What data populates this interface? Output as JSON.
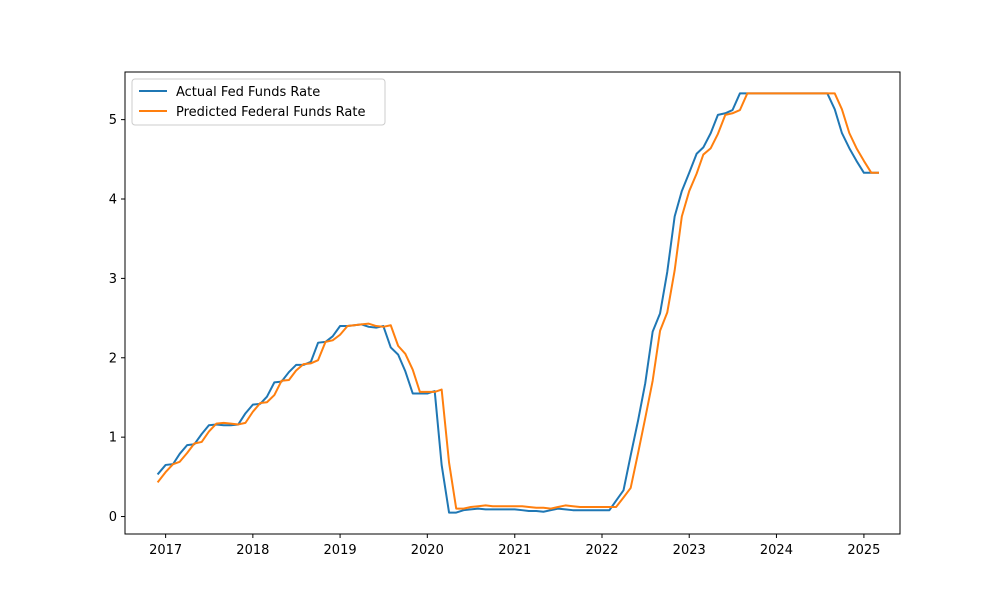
{
  "chart_data": {
    "type": "line",
    "title": "",
    "xlabel": "",
    "ylabel": "",
    "xlim": [
      "2016-07-15",
      "2025-06-01"
    ],
    "ylim": [
      -0.22,
      5.6
    ],
    "x_ticks": [
      "2017",
      "2018",
      "2019",
      "2020",
      "2021",
      "2022",
      "2023",
      "2024",
      "2025"
    ],
    "y_ticks": [
      "0",
      "1",
      "2",
      "3",
      "4",
      "5"
    ],
    "grid": false,
    "legend_position": "top-left",
    "series": [
      {
        "name": "Actual Fed Funds Rate",
        "color": "#1f77b4",
        "points": [
          [
            "2016-12-01",
            0.54
          ],
          [
            "2017-01-01",
            0.65
          ],
          [
            "2017-02-01",
            0.66
          ],
          [
            "2017-03-01",
            0.79
          ],
          [
            "2017-04-01",
            0.9
          ],
          [
            "2017-05-01",
            0.91
          ],
          [
            "2017-06-01",
            1.04
          ],
          [
            "2017-07-01",
            1.15
          ],
          [
            "2017-08-01",
            1.16
          ],
          [
            "2017-09-01",
            1.15
          ],
          [
            "2017-10-01",
            1.15
          ],
          [
            "2017-11-01",
            1.16
          ],
          [
            "2017-12-01",
            1.3
          ],
          [
            "2018-01-01",
            1.41
          ],
          [
            "2018-02-01",
            1.42
          ],
          [
            "2018-03-01",
            1.51
          ],
          [
            "2018-04-01",
            1.69
          ],
          [
            "2018-05-01",
            1.7
          ],
          [
            "2018-06-01",
            1.82
          ],
          [
            "2018-07-01",
            1.91
          ],
          [
            "2018-08-01",
            1.91
          ],
          [
            "2018-09-01",
            1.95
          ],
          [
            "2018-10-01",
            2.19
          ],
          [
            "2018-11-01",
            2.2
          ],
          [
            "2018-12-01",
            2.27
          ],
          [
            "2019-01-01",
            2.4
          ],
          [
            "2019-02-01",
            2.4
          ],
          [
            "2019-03-01",
            2.41
          ],
          [
            "2019-04-01",
            2.42
          ],
          [
            "2019-05-01",
            2.39
          ],
          [
            "2019-06-01",
            2.38
          ],
          [
            "2019-07-01",
            2.4
          ],
          [
            "2019-08-01",
            2.13
          ],
          [
            "2019-09-01",
            2.04
          ],
          [
            "2019-10-01",
            1.83
          ],
          [
            "2019-11-01",
            1.55
          ],
          [
            "2019-12-01",
            1.55
          ],
          [
            "2020-01-01",
            1.55
          ],
          [
            "2020-02-01",
            1.58
          ],
          [
            "2020-03-01",
            0.65
          ],
          [
            "2020-04-01",
            0.05
          ],
          [
            "2020-05-01",
            0.05
          ],
          [
            "2020-06-01",
            0.08
          ],
          [
            "2020-07-01",
            0.09
          ],
          [
            "2020-08-01",
            0.1
          ],
          [
            "2020-09-01",
            0.09
          ],
          [
            "2020-10-01",
            0.09
          ],
          [
            "2020-11-01",
            0.09
          ],
          [
            "2020-12-01",
            0.09
          ],
          [
            "2021-01-01",
            0.09
          ],
          [
            "2021-02-01",
            0.08
          ],
          [
            "2021-03-01",
            0.07
          ],
          [
            "2021-04-01",
            0.07
          ],
          [
            "2021-05-01",
            0.06
          ],
          [
            "2021-06-01",
            0.08
          ],
          [
            "2021-07-01",
            0.1
          ],
          [
            "2021-08-01",
            0.09
          ],
          [
            "2021-09-01",
            0.08
          ],
          [
            "2021-10-01",
            0.08
          ],
          [
            "2021-11-01",
            0.08
          ],
          [
            "2021-12-01",
            0.08
          ],
          [
            "2022-01-01",
            0.08
          ],
          [
            "2022-02-01",
            0.08
          ],
          [
            "2022-03-01",
            0.2
          ],
          [
            "2022-04-01",
            0.33
          ],
          [
            "2022-05-01",
            0.77
          ],
          [
            "2022-06-01",
            1.21
          ],
          [
            "2022-07-01",
            1.68
          ],
          [
            "2022-08-01",
            2.33
          ],
          [
            "2022-09-01",
            2.56
          ],
          [
            "2022-10-01",
            3.08
          ],
          [
            "2022-11-01",
            3.78
          ],
          [
            "2022-12-01",
            4.1
          ],
          [
            "2023-01-01",
            4.33
          ],
          [
            "2023-02-01",
            4.57
          ],
          [
            "2023-03-01",
            4.65
          ],
          [
            "2023-04-01",
            4.83
          ],
          [
            "2023-05-01",
            5.06
          ],
          [
            "2023-06-01",
            5.08
          ],
          [
            "2023-07-01",
            5.12
          ],
          [
            "2023-08-01",
            5.33
          ],
          [
            "2023-09-01",
            5.33
          ],
          [
            "2023-10-01",
            5.33
          ],
          [
            "2023-11-01",
            5.33
          ],
          [
            "2023-12-01",
            5.33
          ],
          [
            "2024-01-01",
            5.33
          ],
          [
            "2024-02-01",
            5.33
          ],
          [
            "2024-03-01",
            5.33
          ],
          [
            "2024-04-01",
            5.33
          ],
          [
            "2024-05-01",
            5.33
          ],
          [
            "2024-06-01",
            5.33
          ],
          [
            "2024-07-01",
            5.33
          ],
          [
            "2024-08-01",
            5.33
          ],
          [
            "2024-09-01",
            5.13
          ],
          [
            "2024-10-01",
            4.83
          ],
          [
            "2024-11-01",
            4.64
          ],
          [
            "2024-12-01",
            4.48
          ],
          [
            "2025-01-01",
            4.33
          ],
          [
            "2025-02-01",
            4.33
          ],
          [
            "2025-03-01",
            4.33
          ]
        ]
      },
      {
        "name": "Predicted Federal Funds Rate",
        "color": "#ff7f0e",
        "points": [
          [
            "2016-12-01",
            0.44
          ],
          [
            "2017-01-01",
            0.56
          ],
          [
            "2017-02-01",
            0.66
          ],
          [
            "2017-03-01",
            0.69
          ],
          [
            "2017-04-01",
            0.8
          ],
          [
            "2017-05-01",
            0.92
          ],
          [
            "2017-06-01",
            0.94
          ],
          [
            "2017-07-01",
            1.07
          ],
          [
            "2017-08-01",
            1.17
          ],
          [
            "2017-09-01",
            1.18
          ],
          [
            "2017-10-01",
            1.17
          ],
          [
            "2017-11-01",
            1.16
          ],
          [
            "2017-12-01",
            1.18
          ],
          [
            "2018-01-01",
            1.32
          ],
          [
            "2018-02-01",
            1.43
          ],
          [
            "2018-03-01",
            1.44
          ],
          [
            "2018-04-01",
            1.53
          ],
          [
            "2018-05-01",
            1.71
          ],
          [
            "2018-06-01",
            1.72
          ],
          [
            "2018-07-01",
            1.84
          ],
          [
            "2018-08-01",
            1.92
          ],
          [
            "2018-09-01",
            1.93
          ],
          [
            "2018-10-01",
            1.97
          ],
          [
            "2018-11-01",
            2.2
          ],
          [
            "2018-12-01",
            2.22
          ],
          [
            "2019-01-01",
            2.29
          ],
          [
            "2019-02-01",
            2.4
          ],
          [
            "2019-03-01",
            2.41
          ],
          [
            "2019-04-01",
            2.42
          ],
          [
            "2019-05-01",
            2.43
          ],
          [
            "2019-06-01",
            2.4
          ],
          [
            "2019-07-01",
            2.39
          ],
          [
            "2019-08-01",
            2.41
          ],
          [
            "2019-09-01",
            2.15
          ],
          [
            "2019-10-01",
            2.05
          ],
          [
            "2019-11-01",
            1.85
          ],
          [
            "2019-12-01",
            1.57
          ],
          [
            "2020-01-01",
            1.57
          ],
          [
            "2020-02-01",
            1.57
          ],
          [
            "2020-03-01",
            1.6
          ],
          [
            "2020-04-01",
            0.68
          ],
          [
            "2020-05-01",
            0.1
          ],
          [
            "2020-06-01",
            0.1
          ],
          [
            "2020-07-01",
            0.12
          ],
          [
            "2020-08-01",
            0.13
          ],
          [
            "2020-09-01",
            0.14
          ],
          [
            "2020-10-01",
            0.13
          ],
          [
            "2020-11-01",
            0.13
          ],
          [
            "2020-12-01",
            0.13
          ],
          [
            "2021-01-01",
            0.13
          ],
          [
            "2021-02-01",
            0.13
          ],
          [
            "2021-03-01",
            0.12
          ],
          [
            "2021-04-01",
            0.11
          ],
          [
            "2021-05-01",
            0.11
          ],
          [
            "2021-06-01",
            0.1
          ],
          [
            "2021-07-01",
            0.12
          ],
          [
            "2021-08-01",
            0.14
          ],
          [
            "2021-09-01",
            0.13
          ],
          [
            "2021-10-01",
            0.12
          ],
          [
            "2021-11-01",
            0.12
          ],
          [
            "2021-12-01",
            0.12
          ],
          [
            "2022-01-01",
            0.12
          ],
          [
            "2022-02-01",
            0.12
          ],
          [
            "2022-03-01",
            0.12
          ],
          [
            "2022-04-01",
            0.24
          ],
          [
            "2022-05-01",
            0.36
          ],
          [
            "2022-06-01",
            0.8
          ],
          [
            "2022-07-01",
            1.24
          ],
          [
            "2022-08-01",
            1.71
          ],
          [
            "2022-09-01",
            2.34
          ],
          [
            "2022-10-01",
            2.57
          ],
          [
            "2022-11-01",
            3.1
          ],
          [
            "2022-12-01",
            3.78
          ],
          [
            "2023-01-01",
            4.1
          ],
          [
            "2023-02-01",
            4.32
          ],
          [
            "2023-03-01",
            4.56
          ],
          [
            "2023-04-01",
            4.64
          ],
          [
            "2023-05-01",
            4.82
          ],
          [
            "2023-06-01",
            5.06
          ],
          [
            "2023-07-01",
            5.08
          ],
          [
            "2023-08-01",
            5.12
          ],
          [
            "2023-09-01",
            5.33
          ],
          [
            "2023-10-01",
            5.33
          ],
          [
            "2023-11-01",
            5.33
          ],
          [
            "2023-12-01",
            5.33
          ],
          [
            "2024-01-01",
            5.33
          ],
          [
            "2024-02-01",
            5.33
          ],
          [
            "2024-03-01",
            5.33
          ],
          [
            "2024-04-01",
            5.33
          ],
          [
            "2024-05-01",
            5.33
          ],
          [
            "2024-06-01",
            5.33
          ],
          [
            "2024-07-01",
            5.33
          ],
          [
            "2024-08-01",
            5.33
          ],
          [
            "2024-09-01",
            5.33
          ],
          [
            "2024-10-01",
            5.13
          ],
          [
            "2024-11-01",
            4.83
          ],
          [
            "2024-12-01",
            4.64
          ],
          [
            "2025-01-01",
            4.48
          ],
          [
            "2025-02-01",
            4.33
          ],
          [
            "2025-03-01",
            4.33
          ]
        ]
      }
    ]
  }
}
